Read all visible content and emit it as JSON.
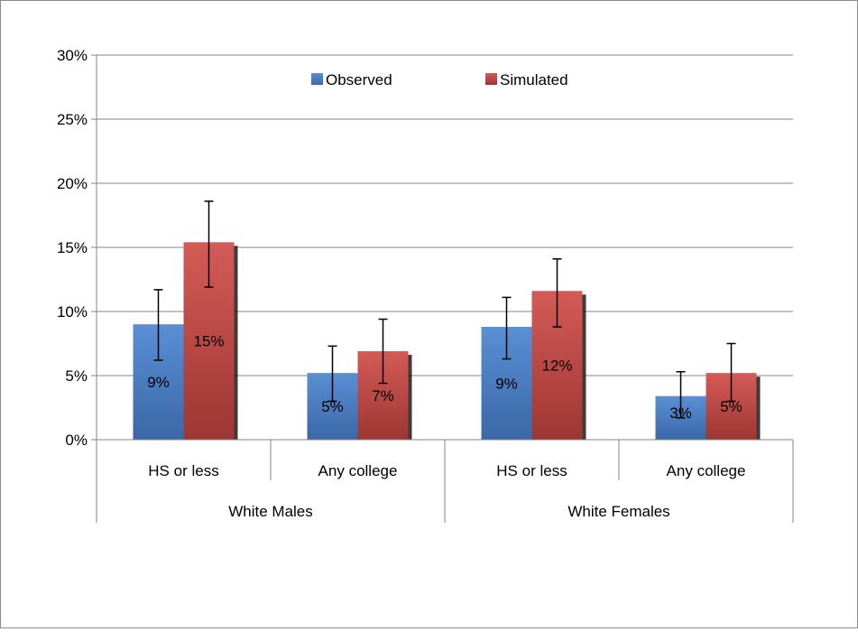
{
  "chart_data": {
    "type": "bar",
    "title": "",
    "xlabel": "",
    "ylabel": "",
    "ylim": [
      0,
      0.3
    ],
    "yticks": [
      0,
      0.05,
      0.1,
      0.15,
      0.2,
      0.25,
      0.3
    ],
    "ytick_labels": [
      "0%",
      "5%",
      "10%",
      "15%",
      "20%",
      "25%",
      "30%"
    ],
    "grid": true,
    "legend_position": "top",
    "groups": [
      {
        "label": "White Males",
        "categories": [
          "HS or less",
          "Any college"
        ]
      },
      {
        "label": "White Females",
        "categories": [
          "HS or less",
          "Any college"
        ]
      }
    ],
    "categories": [
      "HS or less",
      "Any college",
      "HS or less",
      "Any college"
    ],
    "series": [
      {
        "name": "Observed",
        "color": "#4a7ebb",
        "values": [
          0.09,
          0.052,
          0.088,
          0.034
        ],
        "labels": [
          "9%",
          "5%",
          "9%",
          "3%"
        ],
        "error_low": [
          0.062,
          0.03,
          0.063,
          0.017
        ],
        "error_high": [
          0.117,
          0.073,
          0.111,
          0.053
        ]
      },
      {
        "name": "Simulated",
        "color": "#be4b48",
        "values": [
          0.154,
          0.069,
          0.116,
          0.052
        ],
        "labels": [
          "15%",
          "7%",
          "12%",
          "5%"
        ],
        "error_low": [
          0.119,
          0.044,
          0.088,
          0.03
        ],
        "error_high": [
          0.186,
          0.094,
          0.141,
          0.075
        ]
      }
    ]
  }
}
